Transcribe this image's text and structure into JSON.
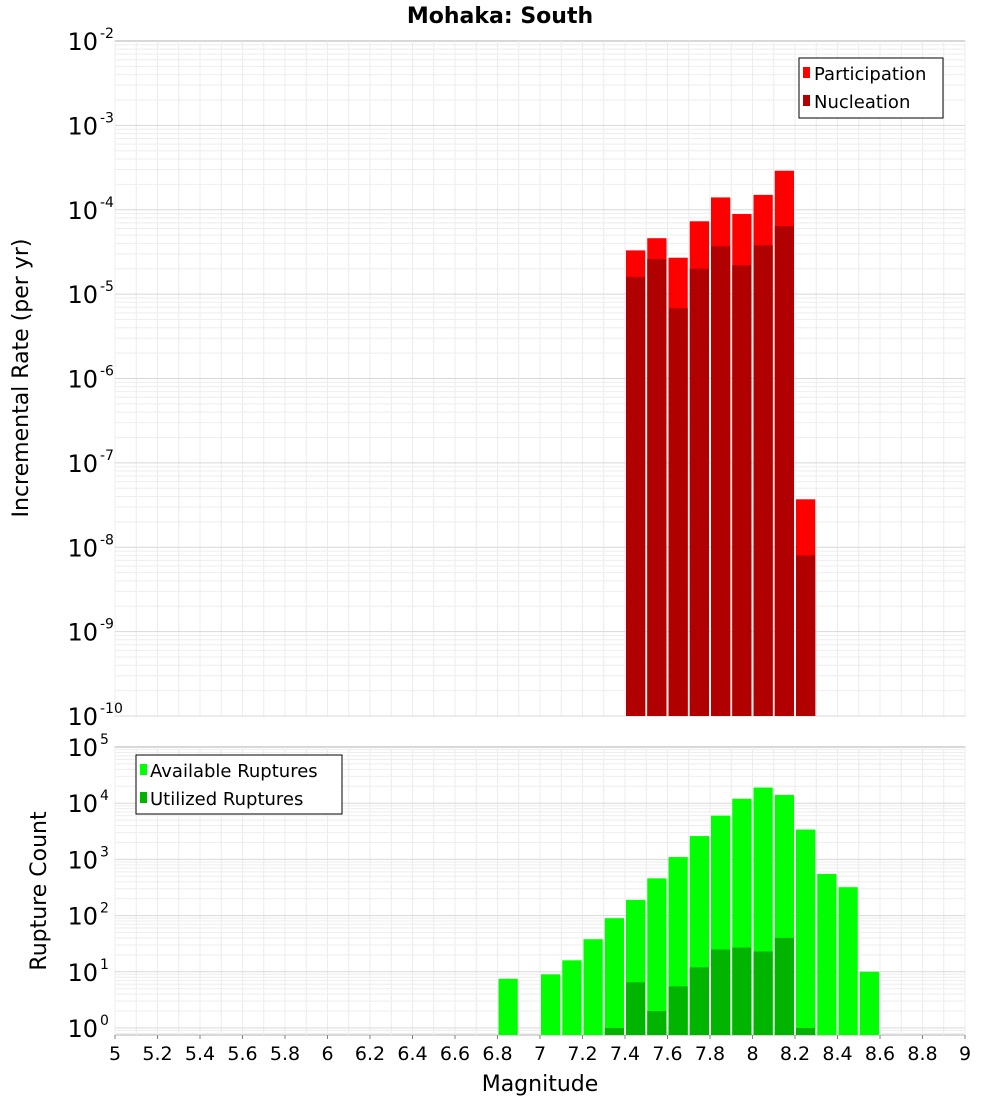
{
  "chart_data": [
    {
      "type": "bar",
      "title": "Mohaka: South",
      "xlabel": "",
      "ylabel": "Incremental Rate (per yr)",
      "yscale": "log",
      "ylim": [
        1e-10,
        0.01
      ],
      "xlim": [
        5,
        9
      ],
      "bin_width": 0.1,
      "legend_position": "top-right",
      "y_ticks": [
        {
          "base": "10",
          "exp": "-10"
        },
        {
          "base": "10",
          "exp": "-9"
        },
        {
          "base": "10",
          "exp": "-8"
        },
        {
          "base": "10",
          "exp": "-7"
        },
        {
          "base": "10",
          "exp": "-6"
        },
        {
          "base": "10",
          "exp": "-5"
        },
        {
          "base": "10",
          "exp": "-4"
        },
        {
          "base": "10",
          "exp": "-3"
        },
        {
          "base": "10",
          "exp": "-2"
        }
      ],
      "series": [
        {
          "name": "Participation",
          "color": "#ff0000",
          "x": [
            7.45,
            7.55,
            7.65,
            7.75,
            7.85,
            7.95,
            8.05,
            8.15,
            8.25
          ],
          "values": [
            3.3e-05,
            4.6e-05,
            2.7e-05,
            7.3e-05,
            0.00014,
            8.9e-05,
            0.00015,
            0.00029,
            3.7e-08
          ]
        },
        {
          "name": "Nucleation",
          "color": "#b00000",
          "x": [
            7.45,
            7.55,
            7.65,
            7.75,
            7.85,
            7.95,
            8.05,
            8.15,
            8.25
          ],
          "values": [
            1.6e-05,
            2.6e-05,
            6.8e-06,
            2e-05,
            3.7e-05,
            2.2e-05,
            3.8e-05,
            6.4e-05,
            8e-09
          ]
        }
      ]
    },
    {
      "type": "bar",
      "title": "",
      "xlabel": "Magnitude",
      "ylabel": "Rupture Count",
      "yscale": "log",
      "ylim": [
        0.75,
        100000.0
      ],
      "xlim": [
        5,
        9
      ],
      "bin_width": 0.1,
      "legend_position": "top-left",
      "x_ticks": [
        "5",
        "5.2",
        "5.4",
        "5.6",
        "5.8",
        "6",
        "6.2",
        "6.4",
        "6.6",
        "6.8",
        "7",
        "7.2",
        "7.4",
        "7.6",
        "7.8",
        "8",
        "8.2",
        "8.4",
        "8.6",
        "8.8",
        "9"
      ],
      "y_ticks": [
        {
          "base": "10",
          "exp": "0"
        },
        {
          "base": "10",
          "exp": "1"
        },
        {
          "base": "10",
          "exp": "2"
        },
        {
          "base": "10",
          "exp": "3"
        },
        {
          "base": "10",
          "exp": "4"
        },
        {
          "base": "10",
          "exp": "5"
        }
      ],
      "series": [
        {
          "name": "Available Ruptures",
          "color": "#00ff00",
          "x": [
            6.85,
            7.05,
            7.15,
            7.25,
            7.35,
            7.45,
            7.55,
            7.65,
            7.75,
            7.85,
            7.95,
            8.05,
            8.15,
            8.25,
            8.35,
            8.45,
            8.55
          ],
          "values": [
            7.5,
            9,
            16,
            38,
            90,
            190,
            460,
            1100,
            2600,
            6000,
            12000,
            19000,
            14000,
            3400,
            550,
            320,
            10
          ]
        },
        {
          "name": "Utilized Ruptures",
          "color": "#00b400",
          "x": [
            7.35,
            7.45,
            7.55,
            7.65,
            7.75,
            7.85,
            7.95,
            8.05,
            8.15,
            8.25
          ],
          "values": [
            1,
            6.5,
            2,
            5.5,
            12,
            25,
            27,
            23,
            40,
            1
          ]
        }
      ]
    }
  ]
}
